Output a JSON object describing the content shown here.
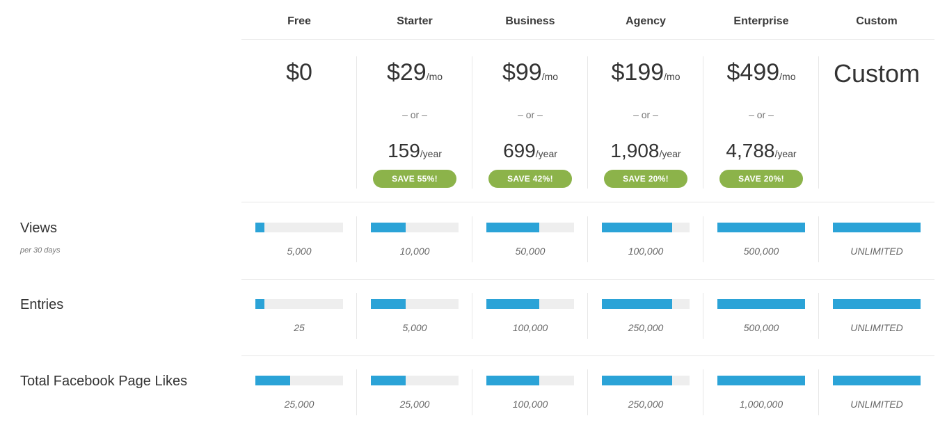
{
  "plans": [
    {
      "name": "Free",
      "price": "$0",
      "price_unit": "",
      "or": "",
      "year_price": "",
      "year_unit": "",
      "badge": ""
    },
    {
      "name": "Starter",
      "price": "$29",
      "price_unit": "/mo",
      "or": "– or –",
      "year_price": "159",
      "year_unit": "/year",
      "badge": "SAVE 55%!"
    },
    {
      "name": "Business",
      "price": "$99",
      "price_unit": "/mo",
      "or": "– or –",
      "year_price": "699",
      "year_unit": "/year",
      "badge": "SAVE 42%!"
    },
    {
      "name": "Agency",
      "price": "$199",
      "price_unit": "/mo",
      "or": "– or –",
      "year_price": "1,908",
      "year_unit": "/year",
      "badge": "SAVE 20%!"
    },
    {
      "name": "Enterprise",
      "price": "$499",
      "price_unit": "/mo",
      "or": "– or –",
      "year_price": "4,788",
      "year_unit": "/year",
      "badge": "SAVE 20%!"
    },
    {
      "name": "Custom",
      "price": "Custom",
      "price_unit": "",
      "or": "",
      "year_price": "",
      "year_unit": "",
      "badge": ""
    }
  ],
  "features": [
    {
      "label": "Views",
      "sublabel": "per 30 days",
      "cells": [
        {
          "value": "5,000",
          "level": 0.1
        },
        {
          "value": "10,000",
          "level": 0.4
        },
        {
          "value": "50,000",
          "level": 0.6
        },
        {
          "value": "100,000",
          "level": 0.8
        },
        {
          "value": "500,000",
          "level": 1.0
        },
        {
          "value": "UNLIMITED",
          "level": 1.0
        }
      ]
    },
    {
      "label": "Entries",
      "sublabel": "",
      "cells": [
        {
          "value": "25",
          "level": 0.1
        },
        {
          "value": "5,000",
          "level": 0.4
        },
        {
          "value": "100,000",
          "level": 0.6
        },
        {
          "value": "250,000",
          "level": 0.8
        },
        {
          "value": "500,000",
          "level": 1.0
        },
        {
          "value": "UNLIMITED",
          "level": 1.0
        }
      ]
    },
    {
      "label": "Total Facebook Page Likes",
      "sublabel": "",
      "cells": [
        {
          "value": "25,000",
          "level": 0.4
        },
        {
          "value": "25,000",
          "level": 0.4
        },
        {
          "value": "100,000",
          "level": 0.6
        },
        {
          "value": "250,000",
          "level": 0.8
        },
        {
          "value": "1,000,000",
          "level": 1.0
        },
        {
          "value": "UNLIMITED",
          "level": 1.0
        }
      ]
    }
  ],
  "colors": {
    "bar_fill": "#2ba3d7",
    "bar_track": "#eeeeee",
    "badge": "#8cb34a"
  }
}
